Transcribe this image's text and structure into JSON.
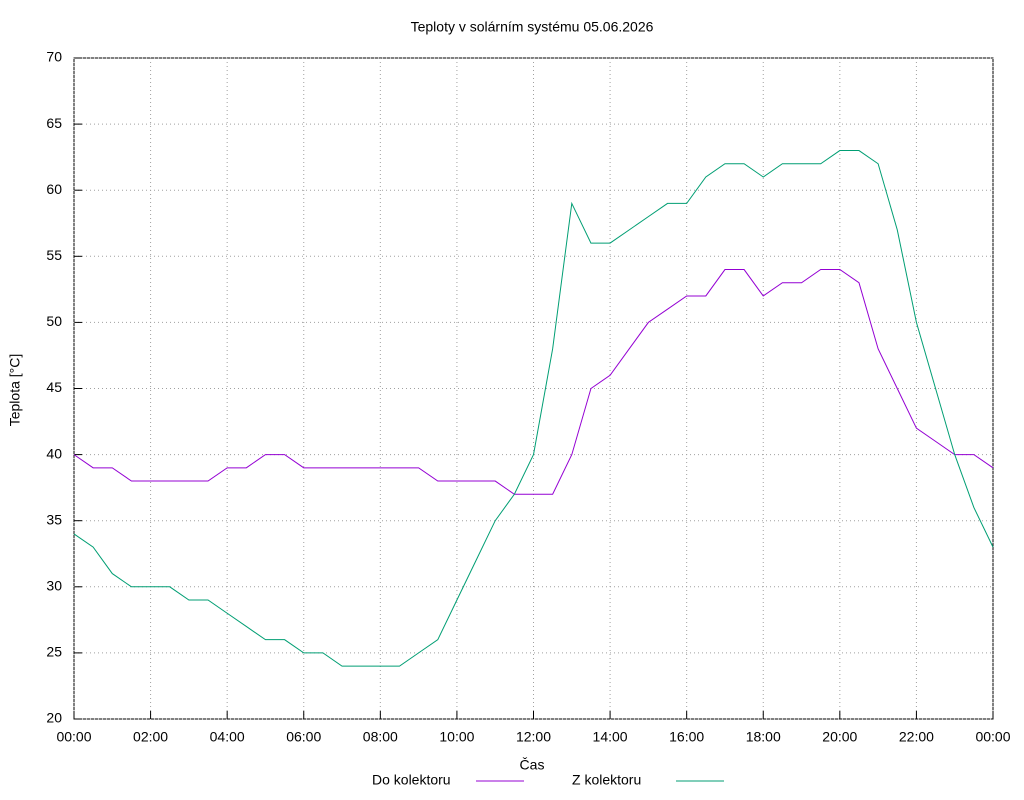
{
  "chart_data": {
    "type": "line",
    "title": "Teploty v solárním systému 05.06.2026",
    "x_label": "Čas",
    "y_label": "Teplota [°C]",
    "x": [
      0,
      0.5,
      1,
      1.5,
      2,
      2.5,
      3,
      3.5,
      4,
      4.5,
      5,
      5.5,
      6,
      6.5,
      7,
      7.5,
      8,
      8.5,
      9,
      9.5,
      10,
      10.5,
      11,
      11.5,
      12,
      12.5,
      13,
      13.5,
      14,
      14.5,
      15,
      15.5,
      16,
      16.5,
      17,
      17.5,
      18,
      18.5,
      19,
      19.5,
      20,
      20.5,
      21,
      21.5,
      22,
      22.5,
      23,
      23.5,
      24
    ],
    "series": [
      {
        "name": "Do kolektoru",
        "color": "#9400d3",
        "values": [
          40,
          39,
          39,
          38,
          38,
          38,
          38,
          38,
          39,
          39,
          40,
          40,
          39,
          39,
          39,
          39,
          39,
          39,
          39,
          38,
          38,
          38,
          38,
          37,
          37,
          37,
          40,
          45,
          46,
          48,
          50,
          51,
          52,
          52,
          54,
          54,
          52,
          53,
          53,
          54,
          54,
          53,
          48,
          45,
          42,
          41,
          40,
          40,
          39
        ]
      },
      {
        "name": "Z kolektoru",
        "color": "#009e73",
        "values": [
          34,
          33,
          31,
          30,
          30,
          30,
          29,
          29,
          28,
          27,
          26,
          26,
          25,
          25,
          24,
          24,
          24,
          24,
          25,
          26,
          29,
          32,
          35,
          37,
          40,
          48,
          59,
          56,
          56,
          57,
          58,
          59,
          59,
          61,
          62,
          62,
          61,
          62,
          62,
          62,
          63,
          63,
          62,
          57,
          50,
          45,
          40,
          36,
          33
        ]
      }
    ],
    "xlim": [
      0,
      24
    ],
    "xticks": [
      {
        "value": 0,
        "label": "00:00"
      },
      {
        "value": 2,
        "label": "02:00"
      },
      {
        "value": 4,
        "label": "04:00"
      },
      {
        "value": 6,
        "label": "06:00"
      },
      {
        "value": 8,
        "label": "08:00"
      },
      {
        "value": 10,
        "label": "10:00"
      },
      {
        "value": 12,
        "label": "12:00"
      },
      {
        "value": 14,
        "label": "14:00"
      },
      {
        "value": 16,
        "label": "16:00"
      },
      {
        "value": 18,
        "label": "18:00"
      },
      {
        "value": 20,
        "label": "20:00"
      },
      {
        "value": 22,
        "label": "22:00"
      },
      {
        "value": 24,
        "label": "00:00"
      }
    ],
    "ylim": [
      20,
      70
    ],
    "yticks": [
      20,
      25,
      30,
      35,
      40,
      45,
      50,
      55,
      60,
      65,
      70
    ],
    "grid": true
  }
}
